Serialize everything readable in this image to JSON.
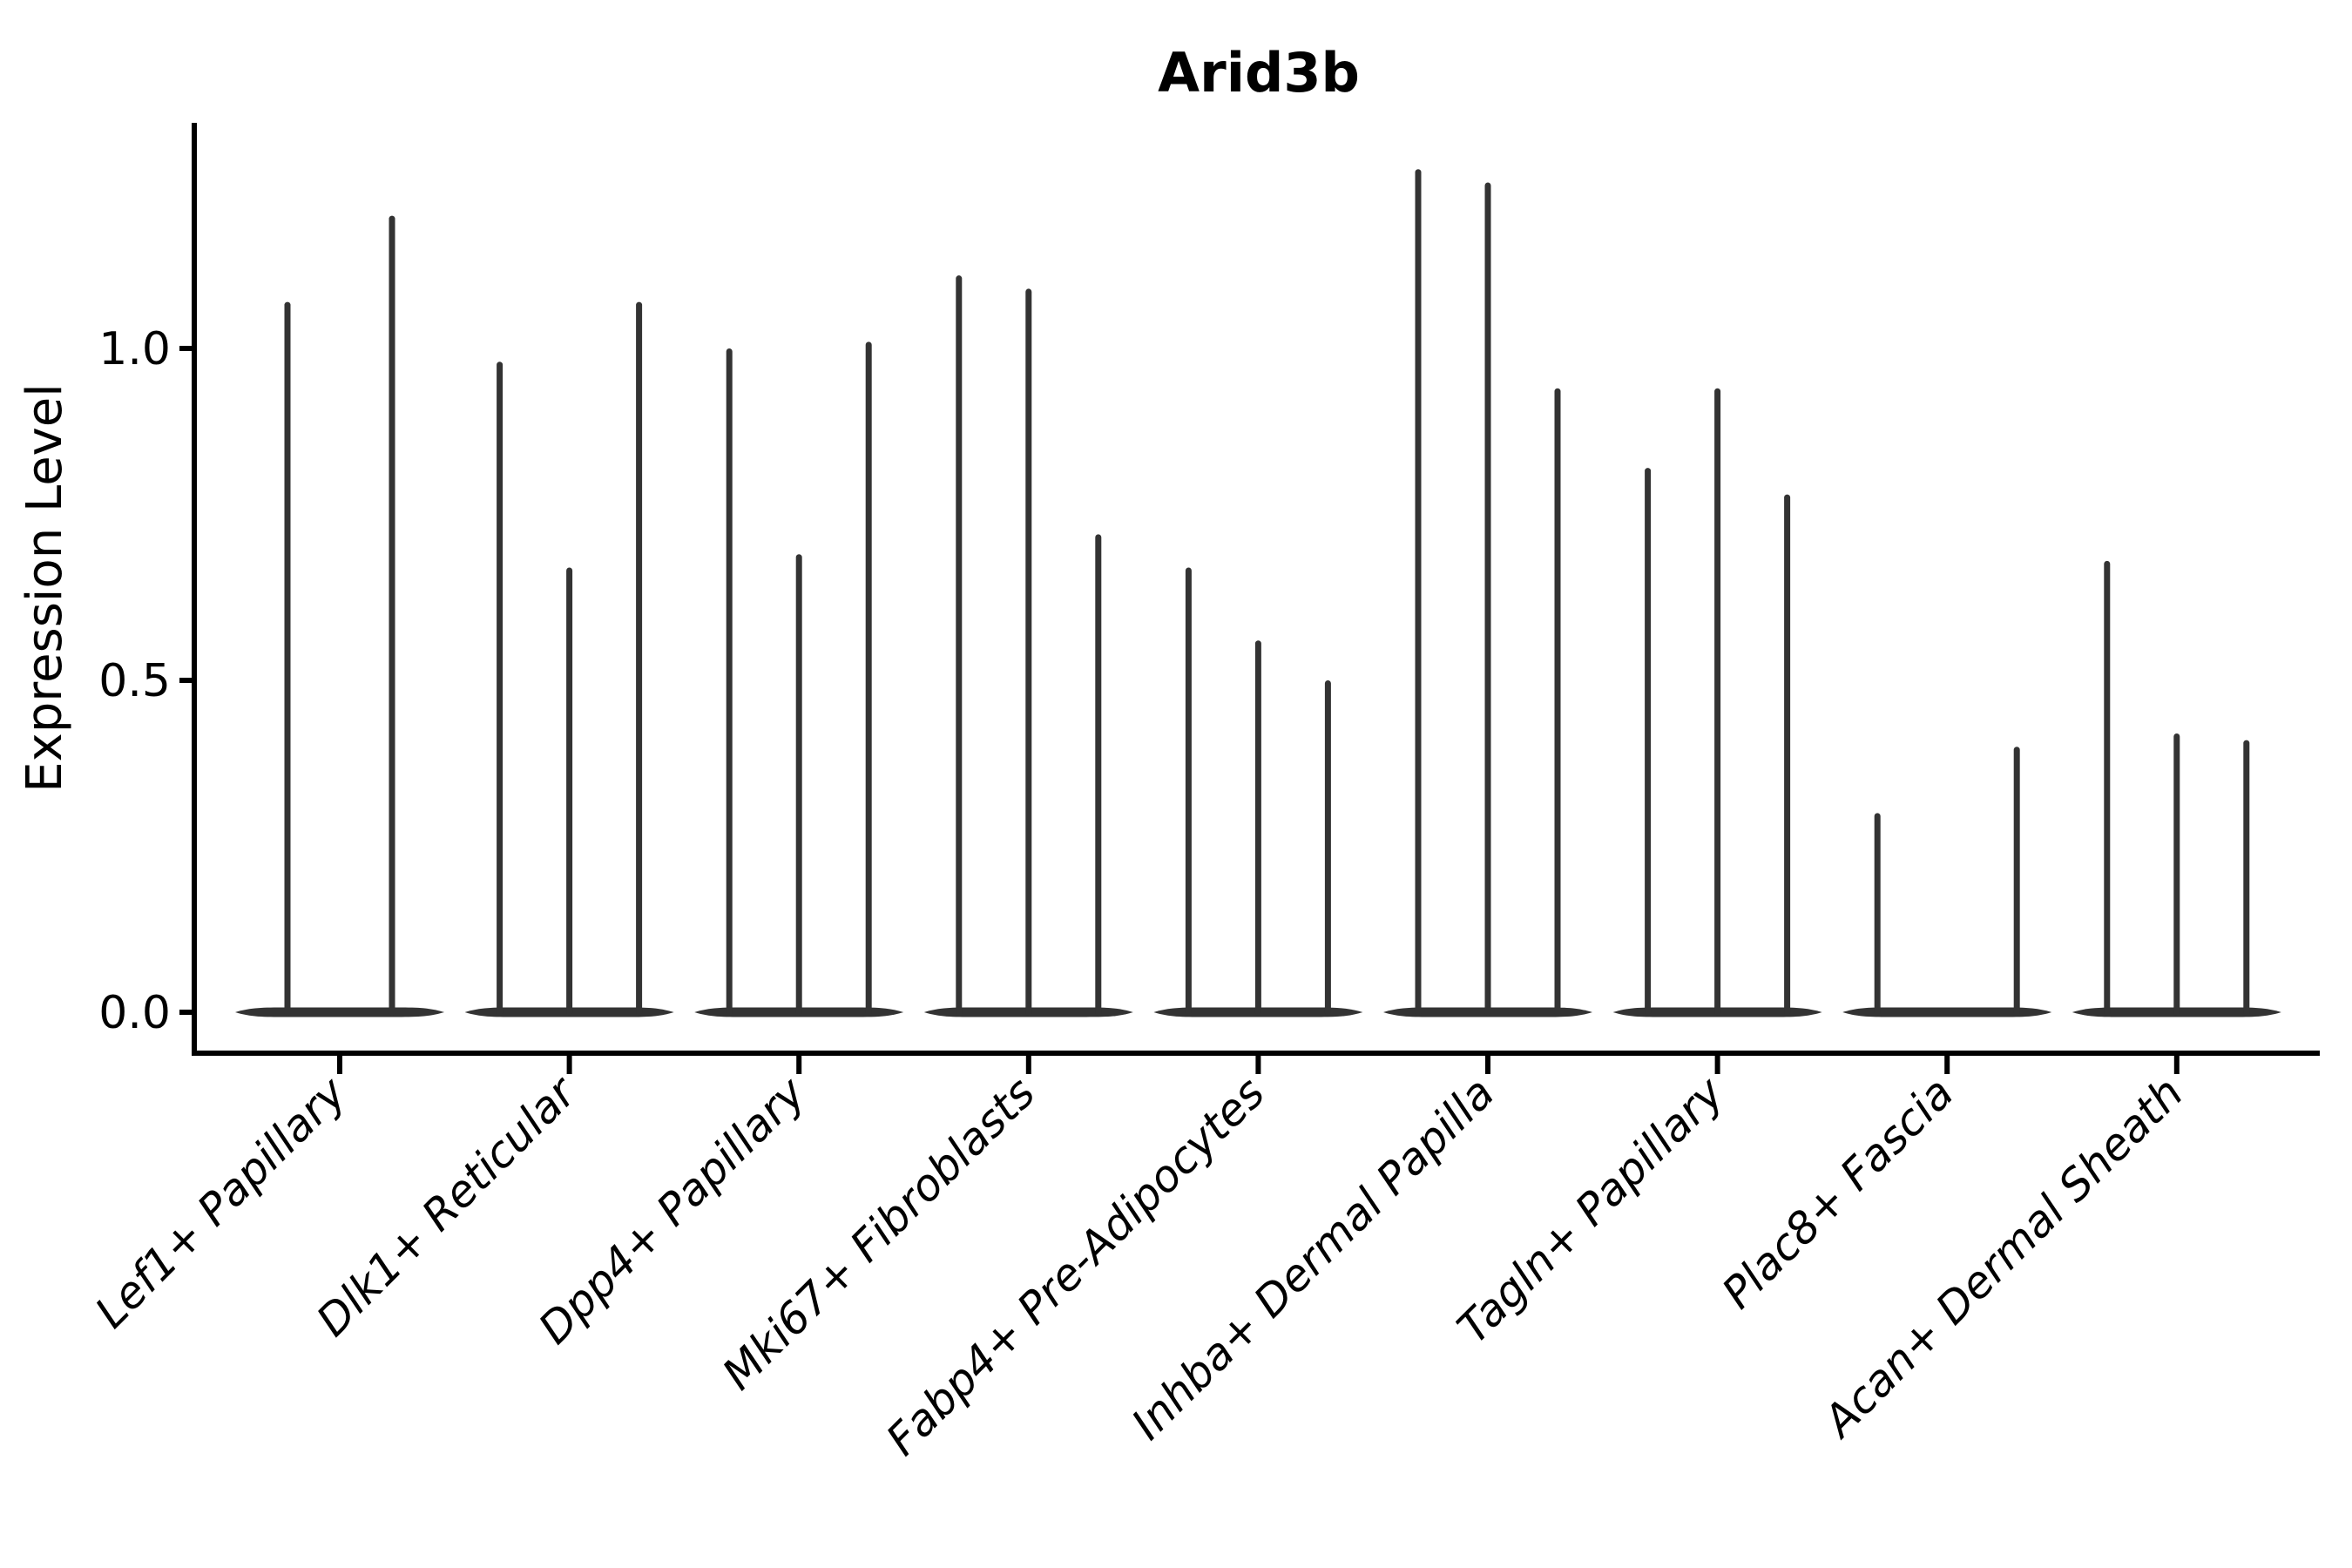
{
  "figure": {
    "background": "#ffffff"
  },
  "chart_data": {
    "type": "violin",
    "title": "Arid3b",
    "xlabel": "",
    "ylabel": "Expression Level",
    "categories": [
      "Lef1+ Papillary",
      "Dlk1+ Reticular",
      "Dpp4+ Papillary",
      "Mki67+ Fibroblasts",
      "Fabp4+ Pre-Adipocytes",
      "Inhba+ Dermal Papilla",
      "Tagln+ Papillary",
      "Plac8+ Fascia",
      "Acan+ Dermal Sheath"
    ],
    "values": [
      [
        1.07,
        1.2
      ],
      [
        0.98,
        0.67,
        1.07
      ],
      [
        1.0,
        0.69,
        1.01
      ],
      [
        1.11,
        1.09,
        0.72
      ],
      [
        0.67,
        0.56,
        0.5
      ],
      [
        1.27,
        1.25,
        0.94
      ],
      [
        0.82,
        0.94,
        0.78
      ],
      [
        0.3,
        0.0,
        0.4
      ],
      [
        0.68,
        0.42,
        0.41
      ]
    ],
    "yticks": [
      0.0,
      0.5,
      1.0
    ],
    "ylim": [
      0,
      1.34
    ],
    "grid": false,
    "legend": false,
    "violin_color": "#333333",
    "axis_color": "#000000"
  }
}
